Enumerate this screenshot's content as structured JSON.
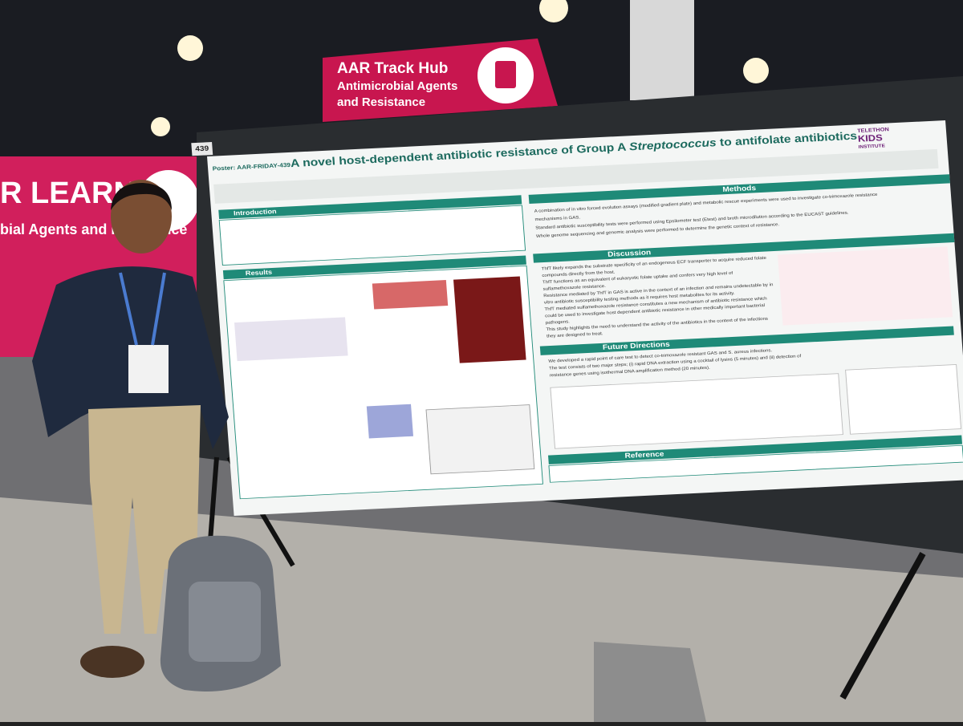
{
  "sign": {
    "line1": "AAR Track Hub",
    "line2": "Antimicrobial Agents",
    "line3": "and Resistance"
  },
  "banner": {
    "line1": "R LEARN",
    "line2": "bial Agents and Resistance"
  },
  "poster": {
    "number": "439",
    "id": "Poster: AAR-FRIDAY-439",
    "title": {
      "before": "A novel host-dependent antibiotic resistance of Group A ",
      "italic": "Streptococcus",
      "after": " to antifolate antibiotics"
    },
    "logo": [
      "TELETHON",
      "KIDS",
      "INSTITUTE"
    ],
    "sections": {
      "introduction": {
        "heading": "Introduction"
      },
      "methods": {
        "heading": "Methods",
        "lines": [
          "A combination of in vitro forced evolution assays (modified gradient plate) and metabolic rescue experiments were used to investigate co-trimoxazole resistance",
          "mechanisms in GAS.",
          "Standard antibiotic susceptibility tests were performed using Epsilometer test (Etest) and broth microdilution according to the EUCAST guidelines.",
          "Whole genome sequencing and genomic analysis were performed to determine the genetic context of resistance."
        ]
      },
      "results": {
        "heading": "Results"
      },
      "discussion": {
        "heading": "Discussion",
        "lines": [
          "ThfT likely expands the substrate specificity of an endogenous ECF transporter to acquire reduced folate",
          "compounds directly from the host.",
          "ThfT functions as an equivalent of eukaryotic folate uptake and confers very high level of",
          "sulfamethoxazole resistance.",
          "Resistance mediated by ThfT in GAS is active in the context of an infection and remains undetectable by in",
          "vitro antibiotic susceptibility testing methods as it requires host metabolites for its activity.",
          "ThfT mediated sulfamethoxazole resistance constitutes a new mechanism of antibiotic resistance which",
          "could be used to investigate host dependent antibiotic resistance in other medically important bacterial",
          "pathogens.",
          "This study highlights the need to understand the activity of the antibiotics in the context of the infections",
          "they are designed to treat."
        ]
      },
      "future": {
        "heading": "Future Directions",
        "lines": [
          "We developed a rapid point of care test to detect co-trimoxazole resistant GAS and S. aureus infections.",
          "The test consists of two major steps; (i) rapid DNA extraction using a cocktail of lysins (5 minutes) and (ii) detection of",
          "resistance genes using isothermal DNA amplification method (20 minutes)."
        ]
      },
      "reference": {
        "heading": "Reference"
      }
    }
  }
}
